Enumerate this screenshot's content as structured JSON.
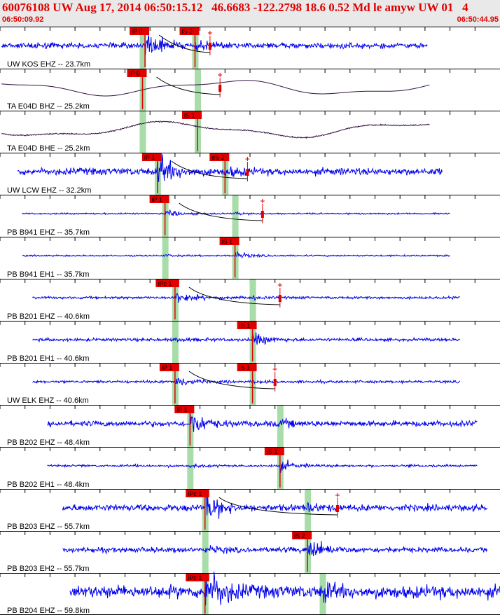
{
  "header": {
    "title": "60076108 UW Aug 17, 2014 06:50:15.12   46.6683 -122.2798 18.6 0.52 Md le amyw UW 01   4",
    "time_start": "06:50:09.92",
    "time_end": "06:50:44.95"
  },
  "colors": {
    "trace_high": "#0000ee",
    "trace_low": "#301040",
    "pick": "#e00000",
    "window": "#a8dca8",
    "curve": "#000000"
  },
  "traces": [
    {
      "label": "UW KOS EHZ -- 23.7km",
      "kind": "hf",
      "start": 0.003,
      "end": 0.855,
      "amp": 0.22,
      "picks": [
        {
          "text": "iP 0",
          "t": 0.29
        },
        {
          "text": "iS 2",
          "t": 0.39
        }
      ],
      "windows": [
        0.285,
        0.39
      ],
      "arrival": 0.29,
      "marker": 0.42,
      "curve": true
    },
    {
      "label": "TA E04D BHZ -- 25.2km",
      "kind": "lf",
      "start": 0.003,
      "end": 0.86,
      "amp": 0.4,
      "picks": [
        {
          "text": "iP 0",
          "t": 0.285
        }
      ],
      "windows": [
        0.285,
        0.395
      ],
      "arrival": 0.285,
      "marker": 0.44,
      "curve": true
    },
    {
      "label": "TA E04D BHE -- 25.2km",
      "kind": "lfn",
      "start": 0.003,
      "end": 0.86,
      "amp": 0.4,
      "picks": [
        {
          "text": "iS 1",
          "t": 0.395
        }
      ],
      "windows": [
        0.285,
        0.395
      ],
      "arrival": 0.395,
      "curve": false
    },
    {
      "label": "UW LCW EHZ -- 32.2km",
      "kind": "hf",
      "start": 0.035,
      "end": 0.885,
      "amp": 0.28,
      "picks": [
        {
          "text": "iP 1",
          "t": 0.315
        },
        {
          "text": "eS 2",
          "t": 0.45
        }
      ],
      "windows": [
        0.315,
        0.45
      ],
      "arrival": 0.315,
      "marker": 0.495,
      "curve": true
    },
    {
      "label": "PB B941 EHZ -- 35.7km",
      "kind": "hf",
      "start": 0.045,
      "end": 0.9,
      "amp": 0.06,
      "picks": [
        {
          "text": "iP 1",
          "t": 0.33
        }
      ],
      "windows": [
        0.33,
        0.47
      ],
      "arrival": 0.33,
      "marker": 0.525,
      "curve": true
    },
    {
      "label": "PB B941 EH1 -- 35.7km",
      "kind": "hf",
      "start": 0.045,
      "end": 0.9,
      "amp": 0.06,
      "picks": [
        {
          "text": "iS 1",
          "t": 0.47
        }
      ],
      "windows": [
        0.33,
        0.47
      ],
      "arrival": 0.47,
      "curve": false
    },
    {
      "label": "PB B201 EHZ -- 40.6km",
      "kind": "hf",
      "start": 0.065,
      "end": 0.92,
      "amp": 0.1,
      "picks": [
        {
          "text": "iPc 1",
          "t": 0.35
        }
      ],
      "windows": [
        0.35,
        0.505
      ],
      "arrival": 0.35,
      "marker": 0.56,
      "curve": true
    },
    {
      "label": "PB B201 EH1 -- 40.6km",
      "kind": "hf",
      "start": 0.065,
      "end": 0.92,
      "amp": 0.12,
      "picks": [
        {
          "text": "iS 1",
          "t": 0.505
        }
      ],
      "windows": [
        0.35,
        0.505
      ],
      "arrival": 0.505,
      "curve": false
    },
    {
      "label": "UW ELK EHZ -- 40.6km",
      "kind": "hf",
      "start": 0.065,
      "end": 0.92,
      "amp": 0.1,
      "picks": [
        {
          "text": "iP 1",
          "t": 0.35
        },
        {
          "text": "iS 1",
          "t": 0.505
        }
      ],
      "windows": [
        0.35,
        0.505
      ],
      "arrival": 0.35,
      "marker": 0.55,
      "curve": true
    },
    {
      "label": "PB B202 EHZ -- 48.4km",
      "kind": "hf",
      "start": 0.095,
      "end": 0.955,
      "amp": 0.22,
      "picks": [
        {
          "text": "iP 1",
          "t": 0.38
        }
      ],
      "windows": [
        0.38,
        0.56
      ],
      "arrival": 0.38,
      "curve": false
    },
    {
      "label": "PB B202 EH1 -- 48.4km",
      "kind": "hf",
      "start": 0.095,
      "end": 0.955,
      "amp": 0.09,
      "picks": [
        {
          "text": "iS 1",
          "t": 0.56
        }
      ],
      "windows": [
        0.38,
        0.56
      ],
      "arrival": 0.56,
      "curve": false
    },
    {
      "label": "PB B203 EHZ -- 55.7km",
      "kind": "hf",
      "start": 0.125,
      "end": 0.975,
      "amp": 0.26,
      "picks": [
        {
          "text": "iPc 1",
          "t": 0.41
        }
      ],
      "windows": [
        0.41,
        0.615
      ],
      "arrival": 0.41,
      "marker": 0.675,
      "curve": true
    },
    {
      "label": "PB B203 EH2 -- 55.7km",
      "kind": "hf",
      "start": 0.125,
      "end": 0.975,
      "amp": 0.2,
      "picks": [
        {
          "text": "iS 2",
          "t": 0.615
        }
      ],
      "windows": [
        0.41,
        0.615
      ],
      "arrival": 0.615,
      "curve": false
    },
    {
      "label": "PB B204 EHZ -- 59.8km",
      "kind": "hf",
      "start": 0.14,
      "end": 1.0,
      "amp": 0.5,
      "picks": [
        {
          "text": "iPc 1",
          "t": 0.41
        }
      ],
      "windows": [
        0.41,
        0.645
      ],
      "arrival": 0.41,
      "curve": false
    }
  ]
}
